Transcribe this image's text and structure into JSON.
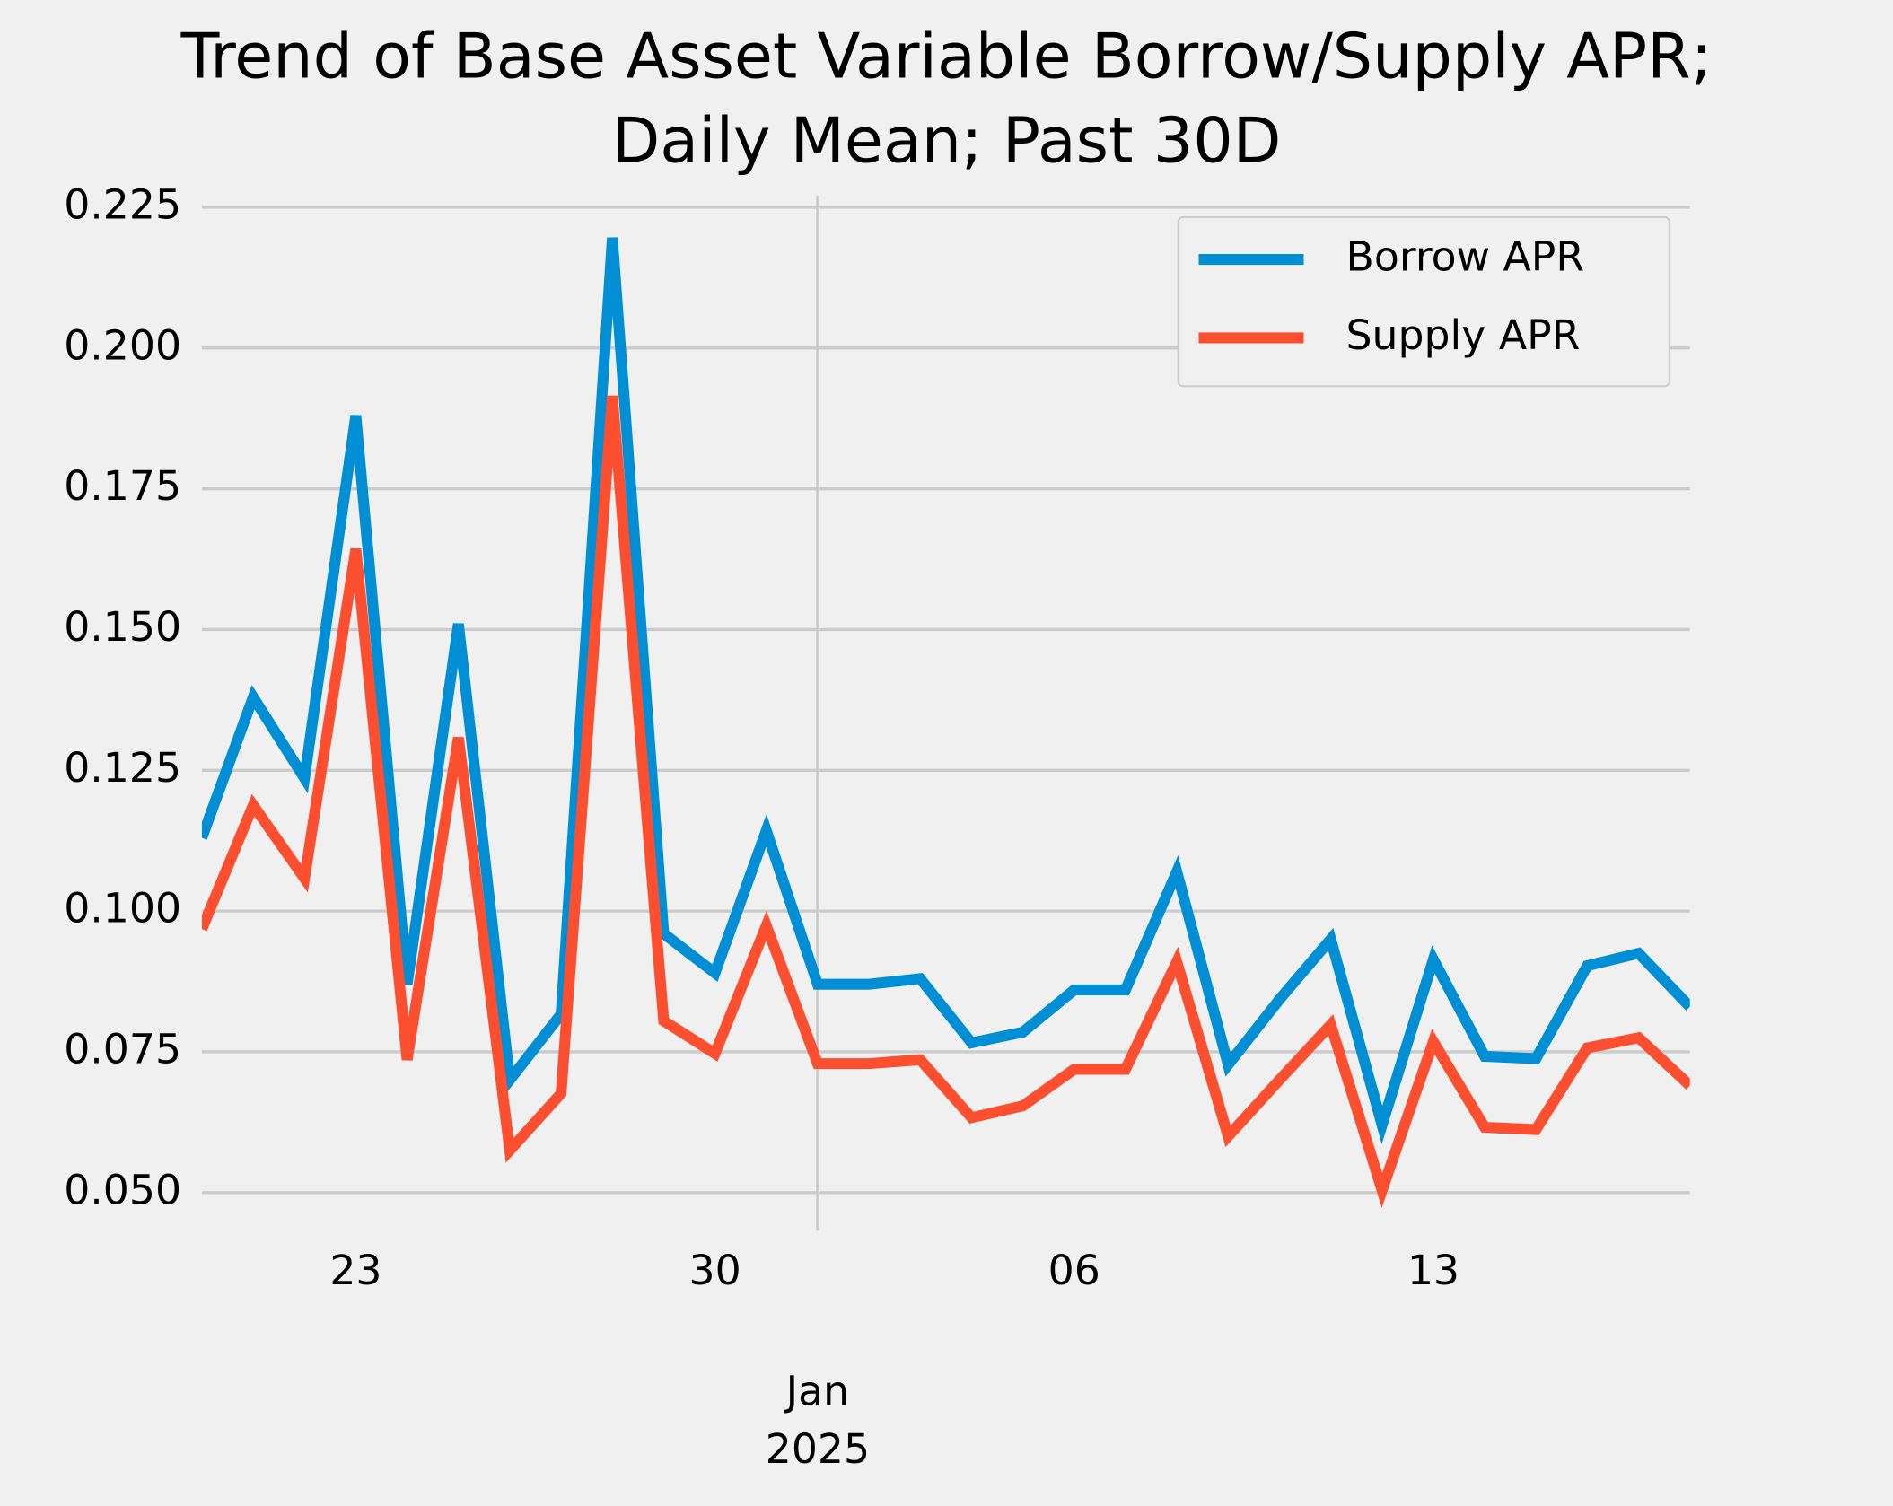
{
  "chart_data": {
    "type": "line",
    "title": [
      "Trend of Base Asset Variable Borrow/Supply APR;",
      "Daily Mean; Past 30D"
    ],
    "x": [
      "2024-12-20",
      "2024-12-21",
      "2024-12-22",
      "2024-12-23",
      "2024-12-24",
      "2024-12-25",
      "2024-12-26",
      "2024-12-27",
      "2024-12-28",
      "2024-12-29",
      "2024-12-30",
      "2024-12-31",
      "2025-01-01",
      "2025-01-02",
      "2025-01-03",
      "2025-01-04",
      "2025-01-05",
      "2025-01-06",
      "2025-01-07",
      "2025-01-08",
      "2025-01-09",
      "2025-01-10",
      "2025-01-11",
      "2025-01-12",
      "2025-01-13",
      "2025-01-14",
      "2025-01-15",
      "2025-01-16",
      "2025-01-17",
      "2025-01-18"
    ],
    "series": [
      {
        "name": "Borrow APR",
        "color": "#008fd5",
        "values": [
          0.113,
          0.138,
          0.1236,
          0.188,
          0.087,
          0.151,
          0.07,
          0.0817,
          0.2196,
          0.096,
          0.089,
          0.1143,
          0.087,
          0.087,
          0.088,
          0.0766,
          0.0785,
          0.086,
          0.086,
          0.107,
          0.0727,
          0.0843,
          0.095,
          0.062,
          0.0914,
          0.0742,
          0.0738,
          0.0903,
          0.0925,
          0.083
        ]
      },
      {
        "name": "Supply APR",
        "color": "#fc4f30",
        "values": [
          0.0968,
          0.1188,
          0.1058,
          0.1643,
          0.0736,
          0.1308,
          0.0575,
          0.0676,
          0.1915,
          0.0805,
          0.0747,
          0.0974,
          0.0729,
          0.0729,
          0.0736,
          0.0633,
          0.0654,
          0.0719,
          0.0719,
          0.091,
          0.06,
          0.07,
          0.0798,
          0.0504,
          0.0768,
          0.0616,
          0.0612,
          0.0757,
          0.0775,
          0.069
        ]
      }
    ],
    "xlim": [
      "2024-12-20",
      "2025-01-18"
    ],
    "xticks": [
      {
        "value": "2024-12-23",
        "label": "23"
      },
      {
        "value": "2024-12-30",
        "label": "30"
      },
      {
        "value": "2025-01-06",
        "label": "06"
      },
      {
        "value": "2025-01-13",
        "label": "13"
      }
    ],
    "xticks_major": [
      {
        "value": "2025-01-01",
        "label": [
          "Jan",
          "2025"
        ]
      }
    ],
    "ylim": [
      0.0432,
      0.2271
    ],
    "yticks": [
      {
        "value": 0.05,
        "label": "0.050"
      },
      {
        "value": 0.075,
        "label": "0.075"
      },
      {
        "value": 0.1,
        "label": "0.100"
      },
      {
        "value": 0.125,
        "label": "0.125"
      },
      {
        "value": 0.15,
        "label": "0.150"
      },
      {
        "value": 0.175,
        "label": "0.175"
      },
      {
        "value": 0.2,
        "label": "0.200"
      },
      {
        "value": 0.225,
        "label": "0.225"
      }
    ],
    "grid": true,
    "legend": "upper right"
  }
}
